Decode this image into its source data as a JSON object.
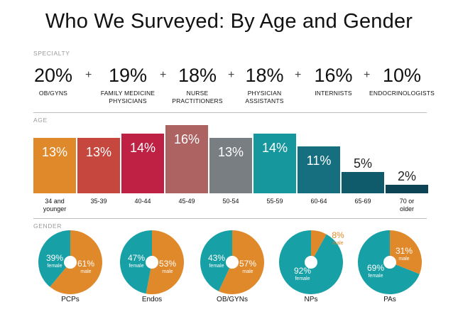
{
  "title": "Who We Surveyed: By Age and Gender",
  "sections": {
    "specialty": "SPECIALTY",
    "age": "AGE",
    "gender": "GENDER"
  },
  "specialty": [
    {
      "value": "20%",
      "label": "OB/GYNS"
    },
    {
      "value": "19%",
      "label": "FAMILY MEDICINE PHYSICIANS"
    },
    {
      "value": "18%",
      "label": "NURSE PRACTITIONERS"
    },
    {
      "value": "18%",
      "label": "PHYSICIAN ASSISTANTS"
    },
    {
      "value": "16%",
      "label": "INTERNISTS"
    },
    {
      "value": "10%",
      "label": "ENDOCRINOLOGISTS"
    }
  ],
  "plus_sign": "+",
  "chart_data": [
    {
      "type": "bar",
      "title": "AGE",
      "categories": [
        "34 and younger",
        "35-39",
        "40-44",
        "45-49",
        "50-54",
        "55-59",
        "60-64",
        "65-69",
        "70 or older"
      ],
      "values": [
        13,
        13,
        14,
        16,
        13,
        14,
        11,
        5,
        2
      ],
      "data_labels": [
        "13%",
        "13%",
        "14%",
        "16%",
        "13%",
        "14%",
        "11%",
        "5%",
        "2%"
      ],
      "colors": [
        "#e0892a",
        "#c5473e",
        "#be2144",
        "#ae6363",
        "#797e82",
        "#16979e",
        "#156f7f",
        "#0f5b6b",
        "#0c4456"
      ],
      "ylim": [
        0,
        16
      ]
    },
    {
      "type": "pie",
      "title": "GENDER",
      "pies": [
        {
          "name": "PCPs",
          "female": 39,
          "male": 61,
          "female_label": "39%",
          "male_label": "61%"
        },
        {
          "name": "Endos",
          "female": 47,
          "male": 53,
          "female_label": "47%",
          "male_label": "53%"
        },
        {
          "name": "OB/GYNs",
          "female": 43,
          "male": 57,
          "female_label": "43%",
          "male_label": "57%"
        },
        {
          "name": "NPs",
          "female": 92,
          "male": 8,
          "female_label": "92%",
          "male_label": "8%"
        },
        {
          "name": "PAs",
          "female": 69,
          "male": 31,
          "female_label": "69%",
          "male_label": "31%"
        }
      ],
      "series": [
        {
          "name": "female"
        },
        {
          "name": "male"
        }
      ],
      "colors": {
        "female": "#17a0a6",
        "male": "#e0892a"
      }
    }
  ]
}
